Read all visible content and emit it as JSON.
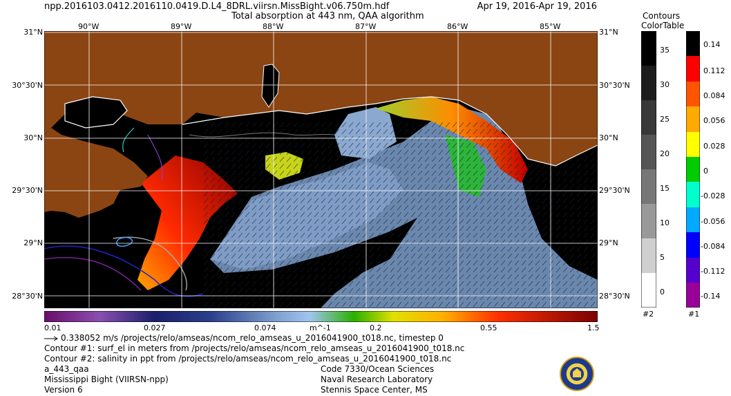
{
  "header": {
    "filename": "npp.2016103.0412.2016110.0419.D.L4_8DRL.viirsn.MissBight.v06.750m.hdf",
    "date_range": "Apr 19, 2016-Apr 19, 2016",
    "subtitle": "Total absorption at 443 nm, QAA algorithm"
  },
  "axes": {
    "lon_labels": [
      "90°W",
      "89°W",
      "88°W",
      "87°W",
      "86°W",
      "85°W"
    ],
    "lat_labels": [
      "31°N",
      "30°30'N",
      "30°N",
      "29°30'N",
      "29°N",
      "28°30'N"
    ]
  },
  "colorbar": {
    "labels": [
      "0.01",
      "0.027",
      "0.074",
      "m^-1",
      "0.2",
      "0.55",
      "1.5"
    ]
  },
  "legend": {
    "title_line1": "Contours",
    "title_line2": "ColorTable",
    "scale2": {
      "labels": [
        "35",
        "30",
        "25",
        "20",
        "15",
        "10",
        "5",
        "0"
      ],
      "footer": "#2"
    },
    "scale1": {
      "labels": [
        "0.14",
        "0.112",
        "0.084",
        "0.056",
        "0.028",
        "0",
        "-0.028",
        "-0.056",
        "-0.084",
        "-0.112",
        "-0.14"
      ],
      "footer": "#1"
    }
  },
  "footer": {
    "vector_text": "0.338052 m/s /projects/relo/amseas/ncom_relo_amseas_u_2016041900_t018.nc, timestep 0",
    "contour1": "Contour #1: surf_el in meters from /projects/relo/amseas/ncom_relo_amseas_u_2016041900_t018.nc",
    "contour2": "Contour #2: salinity in ppt from /projects/relo/amseas/ncom_relo_amseas_u_2016041900_t018.nc",
    "product": "a_443_qaa",
    "region": "Mississippi Bight (VIIRSN-npp)",
    "version": "Version 6",
    "org1": "Code 7330/Ocean Sciences",
    "org2": "Naval Research Laboratory",
    "org3": "Stennis Space Center, MS"
  },
  "colors": {
    "land": "#8b4513",
    "water_nodata": "#000000",
    "grid": "#ffffff"
  }
}
